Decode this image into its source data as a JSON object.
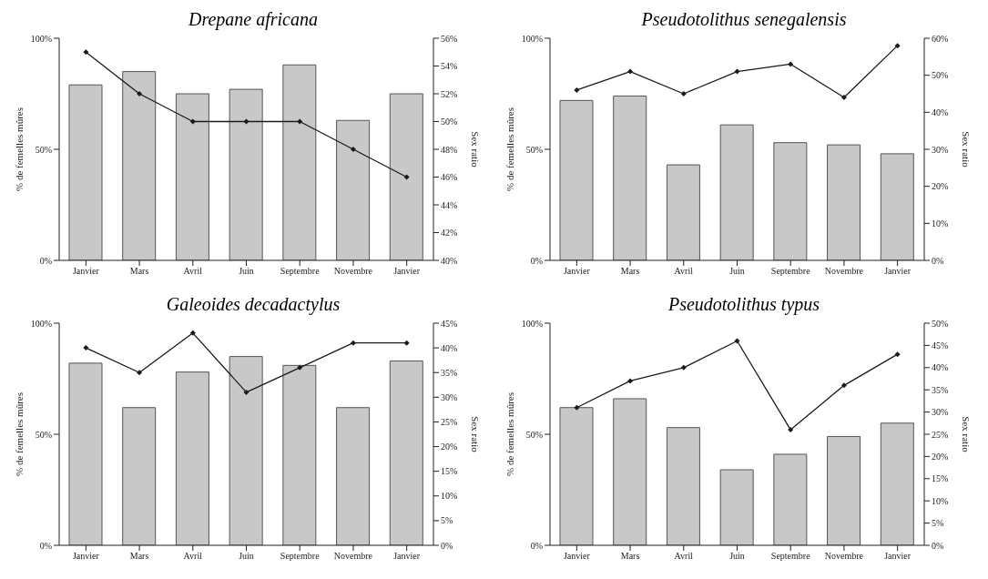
{
  "chart_data": [
    {
      "type": "bar",
      "title": "Drepane africana",
      "ylabel": "% de femelles mûres",
      "y2label": "Sex ratio",
      "categories": [
        "Janvier",
        "Mars",
        "Avril",
        "Juin",
        "Septembre",
        "Novembre",
        "Janvier"
      ],
      "series": [
        {
          "color": "#c8c8c8",
          "values": [
            79,
            85,
            75,
            77,
            88,
            63,
            75
          ]
        },
        {
          "type": "line",
          "axis": "y2",
          "color": "#1a1a1a",
          "values": [
            55,
            52,
            50,
            50,
            50,
            48,
            46
          ]
        }
      ],
      "ylim": [
        0,
        100
      ],
      "yticks": [
        {
          "value": 0,
          "label": "0%"
        },
        {
          "value": 50,
          "label": "50%"
        },
        {
          "value": 100,
          "label": "100%"
        }
      ],
      "y2lim": [
        40,
        56
      ],
      "y2ticks": [
        {
          "value": 40,
          "label": "40%"
        },
        {
          "value": 42,
          "label": "42%"
        },
        {
          "value": 44,
          "label": "44%"
        },
        {
          "value": 46,
          "label": "46%"
        },
        {
          "value": 48,
          "label": "48%"
        },
        {
          "value": 50,
          "label": "50%"
        },
        {
          "value": 52,
          "label": "52%"
        },
        {
          "value": 54,
          "label": "54%"
        },
        {
          "value": 56,
          "label": "56%"
        }
      ],
      "marker": "diamond",
      "legend": false,
      "grid": false
    },
    {
      "type": "bar",
      "title": "Pseudotolithus senegalensis",
      "ylabel": "% de femelles mûres",
      "y2label": "Sex ratio",
      "categories": [
        "Janvier",
        "Mars",
        "Avril",
        "Juin",
        "Septembre",
        "Novembre",
        "Janvier"
      ],
      "series": [
        {
          "color": "#c8c8c8",
          "values": [
            72,
            74,
            43,
            61,
            53,
            52,
            48
          ]
        },
        {
          "type": "line",
          "axis": "y2",
          "color": "#1a1a1a",
          "values": [
            46,
            51,
            45,
            51,
            53,
            44,
            58
          ]
        }
      ],
      "ylim": [
        0,
        100
      ],
      "yticks": [
        {
          "value": 0,
          "label": "0%"
        },
        {
          "value": 50,
          "label": "50%"
        },
        {
          "value": 100,
          "label": "100%"
        }
      ],
      "y2lim": [
        0,
        60
      ],
      "y2ticks": [
        {
          "value": 0,
          "label": "0%"
        },
        {
          "value": 10,
          "label": "10%"
        },
        {
          "value": 20,
          "label": "20%"
        },
        {
          "value": 30,
          "label": "30%"
        },
        {
          "value": 40,
          "label": "40%"
        },
        {
          "value": 50,
          "label": "50%"
        },
        {
          "value": 60,
          "label": "60%"
        }
      ],
      "marker": "diamond",
      "legend": false,
      "grid": false
    },
    {
      "type": "bar",
      "title": "Galeoides decadactylus",
      "ylabel": "% de femelles mûres",
      "y2label": "Sex ratio",
      "categories": [
        "Janvier",
        "Mars",
        "Avril",
        "Juin",
        "Septembre",
        "Novembre",
        "Janvier"
      ],
      "series": [
        {
          "color": "#c8c8c8",
          "values": [
            82,
            62,
            78,
            85,
            81,
            62,
            83
          ]
        },
        {
          "type": "line",
          "axis": "y2",
          "color": "#1a1a1a",
          "values": [
            40,
            35,
            43,
            31,
            36,
            41,
            41
          ]
        }
      ],
      "ylim": [
        0,
        100
      ],
      "yticks": [
        {
          "value": 0,
          "label": "0%"
        },
        {
          "value": 50,
          "label": "50%"
        },
        {
          "value": 100,
          "label": "100%"
        }
      ],
      "y2lim": [
        0,
        45
      ],
      "y2ticks": [
        {
          "value": 0,
          "label": "0%"
        },
        {
          "value": 5,
          "label": "5%"
        },
        {
          "value": 10,
          "label": "10%"
        },
        {
          "value": 15,
          "label": "15%"
        },
        {
          "value": 20,
          "label": "20%"
        },
        {
          "value": 25,
          "label": "25%"
        },
        {
          "value": 30,
          "label": "30%"
        },
        {
          "value": 35,
          "label": "35%"
        },
        {
          "value": 40,
          "label": "40%"
        },
        {
          "value": 45,
          "label": "45%"
        }
      ],
      "marker": "diamond",
      "legend": false,
      "grid": false
    },
    {
      "type": "bar",
      "title": "Pseudotolithus typus",
      "ylabel": "% de femelles mûres",
      "y2label": "Sex ratio",
      "categories": [
        "Janvier",
        "Mars",
        "Avril",
        "Juin",
        "Septembre",
        "Novembre",
        "Janvier"
      ],
      "series": [
        {
          "color": "#c8c8c8",
          "values": [
            62,
            66,
            53,
            34,
            41,
            49,
            55
          ]
        },
        {
          "type": "line",
          "axis": "y2",
          "color": "#1a1a1a",
          "values": [
            31,
            37,
            40,
            46,
            26,
            36,
            43
          ]
        }
      ],
      "ylim": [
        0,
        100
      ],
      "yticks": [
        {
          "value": 0,
          "label": "0%"
        },
        {
          "value": 50,
          "label": "50%"
        },
        {
          "value": 100,
          "label": "100%"
        }
      ],
      "y2lim": [
        0,
        50
      ],
      "y2ticks": [
        {
          "value": 0,
          "label": "0%"
        },
        {
          "value": 5,
          "label": "5%"
        },
        {
          "value": 10,
          "label": "10%"
        },
        {
          "value": 15,
          "label": "15%"
        },
        {
          "value": 20,
          "label": "20%"
        },
        {
          "value": 25,
          "label": "25%"
        },
        {
          "value": 30,
          "label": "30%"
        },
        {
          "value": 35,
          "label": "35%"
        },
        {
          "value": 40,
          "label": "40%"
        },
        {
          "value": 45,
          "label": "45%"
        },
        {
          "value": 50,
          "label": "50%"
        }
      ],
      "marker": "diamond",
      "legend": false,
      "grid": false
    }
  ]
}
